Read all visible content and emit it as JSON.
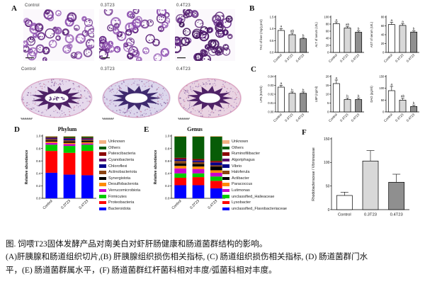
{
  "figure": {
    "panel_letters": {
      "A": "A",
      "B": "B",
      "C": "C",
      "D": "D",
      "E": "E",
      "F": "F"
    },
    "bar_colors": [
      "#ffffff",
      "#d8d8d8",
      "#8f8f8f"
    ],
    "histology": {
      "row1_labels": [
        "Control",
        "0.3T23",
        "0.4T23"
      ],
      "row2_labels": [
        "Control",
        "0.3T23",
        "0.4T23"
      ]
    },
    "caption": {
      "line1": "图. 饲喂T23固体发酵产品对南美白对虾肝肠健康和肠道菌群结构的影响。",
      "line2": "(A)肝胰腺和肠道组织切片,(B) 肝胰腺组织损伤相关指标, (C) 肠道组织损伤相关指标, (D) 肠道菌群门水",
      "line3": "平，(E) 肠道菌群属水平，(F) 肠道菌群红杆菌科相对丰度/弧菌科相对丰度。"
    }
  },
  "chart_data": [
    {
      "id": "B1",
      "type": "bar",
      "title": "",
      "ylabel": "TAC of liver (mg/g prot)",
      "categories": [
        "Control",
        "0.3T23",
        "0.4T23"
      ],
      "values": [
        0.93,
        0.75,
        0.58
      ],
      "errors": [
        0.08,
        0.07,
        0.05
      ],
      "sig_letters": [
        "a",
        "ab",
        "b"
      ],
      "ylim": [
        0,
        1.5
      ],
      "yticks": [
        0,
        0.5,
        1,
        1.5
      ],
      "tick_dec": 1
    },
    {
      "id": "B2",
      "type": "bar",
      "title": "",
      "ylabel": "ALT of serum (U/L)",
      "categories": [
        "Control",
        "0.3T23",
        "0.4T23"
      ],
      "values": [
        81,
        69,
        57
      ],
      "errors": [
        5,
        4,
        4
      ],
      "sig_letters": [
        "a",
        "ab",
        "b"
      ],
      "ylim": [
        0,
        100
      ],
      "yticks": [
        0,
        20,
        40,
        60,
        80,
        100
      ],
      "tick_dec": 0
    },
    {
      "id": "B3",
      "type": "bar",
      "title": "",
      "ylabel": "AST of serum (U/L)",
      "categories": [
        "Control",
        "0.3T23",
        "0.4T23"
      ],
      "values": [
        63,
        61,
        46
      ],
      "errors": [
        5,
        4,
        3
      ],
      "sig_letters": [
        "a",
        "a",
        "b"
      ],
      "ylim": [
        0,
        80
      ],
      "yticks": [
        0,
        20,
        40,
        60,
        80
      ],
      "tick_dec": 0
    },
    {
      "id": "C1",
      "type": "bar",
      "title": "",
      "ylabel": "LPS (EU/ml)",
      "categories": [
        "Control",
        "0.3T23",
        "0.4T23"
      ],
      "values": [
        0.028,
        0.021,
        0.021
      ],
      "errors": [
        0.002,
        0.0015,
        0.0015
      ],
      "sig_letters": [
        "a",
        "b",
        "b"
      ],
      "ylim": [
        0,
        0.04
      ],
      "yticks": [
        0,
        0.01,
        0.02,
        0.03,
        0.04
      ],
      "tick_dec": 2
    },
    {
      "id": "C2",
      "type": "bar",
      "title": "",
      "ylabel": "LBP (ng/ml)",
      "categories": [
        "Control",
        "0.3T23",
        "0.4T23"
      ],
      "values": [
        16,
        7,
        7
      ],
      "errors": [
        2,
        0.8,
        0.8
      ],
      "sig_letters": [
        "a",
        "b",
        "b"
      ],
      "ylim": [
        0,
        20
      ],
      "yticks": [
        0,
        5,
        10,
        15,
        20
      ],
      "tick_dec": 0
    },
    {
      "id": "C3",
      "type": "bar",
      "title": "",
      "ylabel": "DAO (pg/ml)",
      "categories": [
        "Control",
        "0.3T23",
        "0.4T23"
      ],
      "values": [
        90,
        50,
        23
      ],
      "errors": [
        18,
        8,
        5
      ],
      "sig_letters": [
        "a",
        "ab",
        "b"
      ],
      "ylim": [
        0,
        150
      ],
      "yticks": [
        0,
        50,
        100,
        150
      ],
      "tick_dec": 0
    },
    {
      "id": "D",
      "type": "stacked_bar",
      "title": "Phylum",
      "ylabel": "Relative abundance",
      "categories": [
        "Control",
        "0.3T23",
        "0.4T23"
      ],
      "ylim": [
        0,
        1
      ],
      "yticks": [
        0,
        0.2,
        0.4,
        0.6,
        0.8,
        1
      ],
      "tick_dec": 1,
      "series": [
        {
          "name": "Bacteroidota",
          "color": "#0000ff",
          "values": [
            0.41,
            0.38,
            0.37
          ]
        },
        {
          "name": "Proteobacteria",
          "color": "#ff0000",
          "values": [
            0.35,
            0.35,
            0.39
          ]
        },
        {
          "name": "Firmicutes",
          "color": "#00cc00",
          "values": [
            0.1,
            0.11,
            0.1
          ]
        },
        {
          "name": "Verrucomicrobiota",
          "color": "#cc00cc",
          "values": [
            0.03,
            0.03,
            0.02
          ]
        },
        {
          "name": "Desulfobacterota",
          "color": "#ff8c00",
          "values": [
            0.02,
            0.02,
            0.02
          ]
        },
        {
          "name": "Synergistota",
          "color": "#000000",
          "values": [
            0.02,
            0.02,
            0.02
          ]
        },
        {
          "name": "Actinobacteriota",
          "color": "#8b4513",
          "values": [
            0.02,
            0.02,
            0.02
          ]
        },
        {
          "name": "Chloroflexi",
          "color": "#00008b",
          "values": [
            0.01,
            0.02,
            0.01
          ]
        },
        {
          "name": "Cyanobacteria",
          "color": "#5c0a69",
          "values": [
            0.01,
            0.01,
            0.01
          ]
        },
        {
          "name": "Patescibacteria",
          "color": "#8b0000",
          "values": [
            0.01,
            0.01,
            0.01
          ]
        },
        {
          "name": "Others",
          "color": "#075c07",
          "values": [
            0.01,
            0.02,
            0.02
          ]
        },
        {
          "name": "Unknown",
          "color": "#f4b183",
          "values": [
            0.01,
            0.01,
            0.01
          ]
        }
      ]
    },
    {
      "id": "E",
      "type": "stacked_bar",
      "title": "Genus",
      "ylabel": "Relative abundance",
      "categories": [
        "Control",
        "0.3T23",
        "0.4T23"
      ],
      "ylim": [
        0,
        1
      ],
      "yticks": [
        0,
        0.2,
        0.4,
        0.6,
        0.8,
        1
      ],
      "tick_dec": 1,
      "series": [
        {
          "name": "unclassified_Flavobacteriaceae",
          "color": "#0000ff",
          "values": [
            0.21,
            0.21,
            0.16
          ]
        },
        {
          "name": "Lysobacter",
          "color": "#ff0000",
          "values": [
            0.12,
            0.13,
            0.12
          ]
        },
        {
          "name": "unclassified_Halieaceae",
          "color": "#00cc00",
          "values": [
            0.07,
            0.06,
            0.07
          ]
        },
        {
          "name": "Lutimonas",
          "color": "#cc00cc",
          "values": [
            0.08,
            0.07,
            0.06
          ]
        },
        {
          "name": "Paracoccus",
          "color": "#ff8c00",
          "values": [
            0.04,
            0.04,
            0.04
          ]
        },
        {
          "name": "Actibacter",
          "color": "#000000",
          "values": [
            0.04,
            0.04,
            0.06
          ]
        },
        {
          "name": "Haloferula",
          "color": "#8b4513",
          "values": [
            0.04,
            0.03,
            0.02
          ]
        },
        {
          "name": "Vibrio",
          "color": "#00008b",
          "values": [
            0.02,
            0.02,
            0.04
          ]
        },
        {
          "name": "Algoriphagus",
          "color": "#5c0a69",
          "values": [
            0.01,
            0.01,
            0.01
          ]
        },
        {
          "name": "Ruminofilibacter",
          "color": "#8b0000",
          "values": [
            0.02,
            0.02,
            0.02
          ]
        },
        {
          "name": "Others",
          "color": "#075c07",
          "values": [
            0.34,
            0.36,
            0.39
          ]
        },
        {
          "name": "Unknown",
          "color": "#f4b183",
          "values": [
            0.01,
            0.01,
            0.01
          ]
        }
      ]
    },
    {
      "id": "F",
      "type": "bar",
      "title": "",
      "ylabel": "Rhodobacteraceae / Vibrionaceae",
      "categories": [
        "Control",
        "0.3T23",
        "0.4T23"
      ],
      "values": [
        30,
        103,
        58
      ],
      "errors": [
        7,
        22,
        17
      ],
      "sig_letters": [
        "",
        "",
        ""
      ],
      "ylim": [
        0,
        150
      ],
      "yticks": [
        0,
        50,
        100,
        150
      ],
      "tick_dec": 0
    }
  ]
}
